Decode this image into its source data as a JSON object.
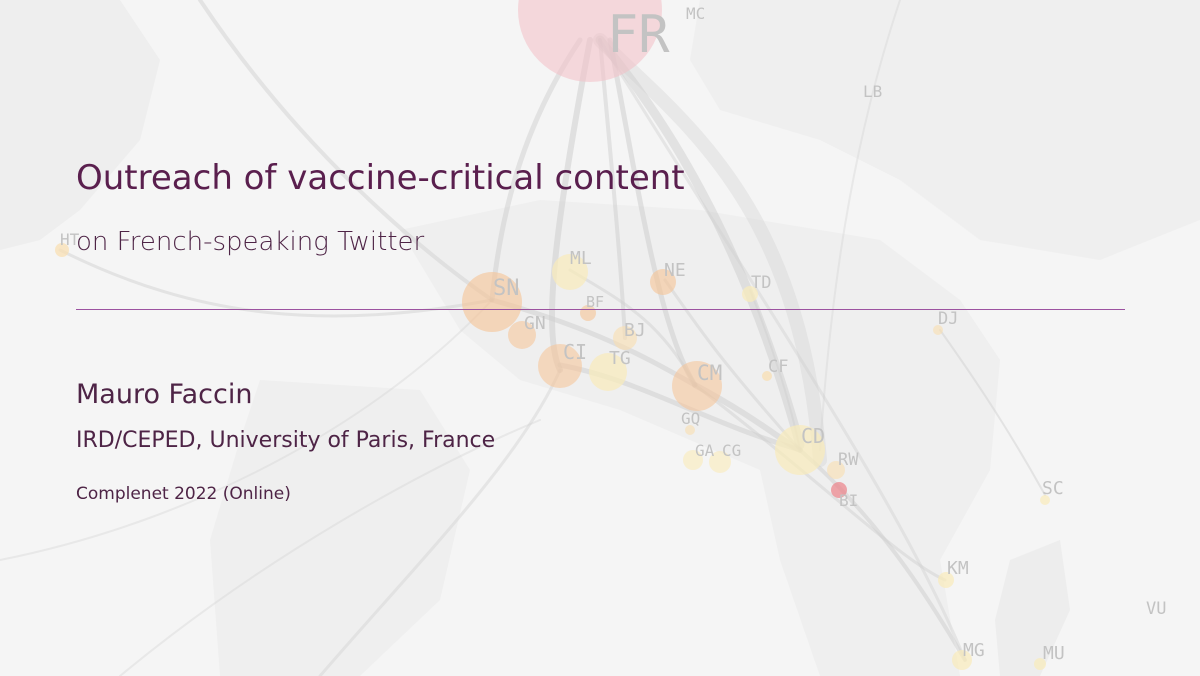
{
  "slide": {
    "title": "Outreach of vaccine-critical content",
    "subtitle": "on French-speaking Twitter",
    "author": "Mauro Faccin",
    "affiliation": "IRD/CEPED, University of Paris, France",
    "event": "Complenet 2022 (Online)"
  },
  "map_labels": [
    "FR",
    "MC",
    "LB",
    "HT",
    "ML",
    "SN",
    "NE",
    "TD",
    "BF",
    "GN",
    "BJ",
    "DJ",
    "CI",
    "TG",
    "CM",
    "CF",
    "GQ",
    "CD",
    "GA",
    "CG",
    "RW",
    "BI",
    "SC",
    "KM",
    "VU",
    "MG",
    "MU"
  ],
  "colors": {
    "title": "#5a1f4e",
    "text": "#4e2446",
    "rule": "#9c52a0",
    "background": "#f4f4f4"
  }
}
